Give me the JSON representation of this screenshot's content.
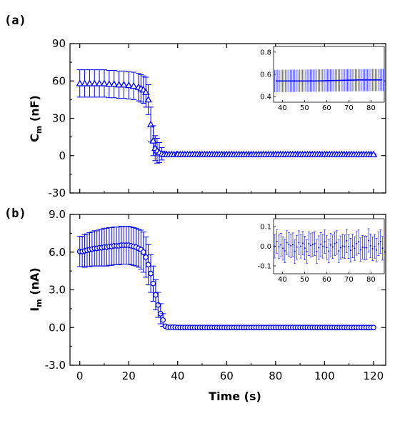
{
  "figure": {
    "panels": [
      "(a)",
      "(b)"
    ]
  },
  "chart_data": [
    {
      "type": "scatter",
      "panel": "(a)",
      "ylabel": "C",
      "ylabel_sub": "m",
      "ylabel_unit": " (nF)",
      "xlabel": "",
      "xlim": [
        -4,
        125
      ],
      "ylim": [
        -30,
        90
      ],
      "xticks": [
        0,
        20,
        40,
        60,
        80,
        100,
        120
      ],
      "yticks": [
        -30,
        0,
        30,
        60,
        90
      ],
      "ytick_labels": [
        "-30",
        "0",
        "30",
        "60",
        "90"
      ],
      "marker": "triangle-up",
      "color": "#0000ff",
      "points": [
        [
          0,
          58,
          11
        ],
        [
          2,
          58,
          11
        ],
        [
          4,
          58,
          11
        ],
        [
          6,
          58,
          11
        ],
        [
          8,
          58,
          11
        ],
        [
          10,
          58,
          11
        ],
        [
          12,
          57.5,
          11
        ],
        [
          14,
          57.5,
          11
        ],
        [
          16,
          57,
          11
        ],
        [
          18,
          57,
          11
        ],
        [
          20,
          56.5,
          11
        ],
        [
          22,
          56,
          11
        ],
        [
          24,
          55,
          11
        ],
        [
          25,
          54,
          11
        ],
        [
          26,
          53,
          11
        ],
        [
          27,
          51,
          12
        ],
        [
          28,
          45,
          12
        ],
        [
          29,
          25,
          14
        ],
        [
          30,
          12,
          12
        ],
        [
          30.8,
          6,
          10
        ],
        [
          31.6,
          4,
          10
        ],
        [
          32.5,
          2.5,
          8
        ],
        [
          33.5,
          1.5,
          5
        ],
        [
          34.5,
          1.2,
          2
        ],
        [
          35.5,
          1,
          1
        ],
        [
          40,
          1,
          0.5
        ],
        [
          50,
          1,
          0.5
        ],
        [
          60,
          1,
          0.5
        ],
        [
          70,
          1,
          0.5
        ],
        [
          80,
          1,
          0.5
        ],
        [
          90,
          1,
          0.5
        ],
        [
          100,
          1,
          0.5
        ],
        [
          110,
          1,
          0.5
        ],
        [
          120,
          1,
          0.5
        ]
      ],
      "inset": {
        "xlim": [
          36,
          86
        ],
        "ylim": [
          0.35,
          0.85
        ],
        "xticks": [
          40,
          50,
          60,
          70,
          80
        ],
        "yticks": [
          0.4,
          0.6,
          0.8
        ],
        "ytick_labels": [
          "0.4",
          "0.6",
          "0.8"
        ],
        "series": [
          [
            37,
            0.54,
            0.1
          ],
          [
            45,
            0.54,
            0.1
          ],
          [
            55,
            0.54,
            0.1
          ],
          [
            65,
            0.545,
            0.1
          ],
          [
            75,
            0.55,
            0.1
          ],
          [
            85,
            0.55,
            0.1
          ]
        ]
      }
    },
    {
      "type": "scatter",
      "panel": "(b)",
      "ylabel": "I",
      "ylabel_sub": "m",
      "ylabel_unit": " (nA)",
      "xlabel": "Time (s)",
      "xlim": [
        -4,
        125
      ],
      "ylim": [
        -3.0,
        9.0
      ],
      "xticks": [
        0,
        20,
        40,
        60,
        80,
        100,
        120
      ],
      "yticks": [
        -3.0,
        0.0,
        3.0,
        6.0,
        9.0
      ],
      "ytick_labels": [
        "-3.0",
        "0.0",
        "3.0",
        "6.0",
        "9.0"
      ],
      "marker": "circle",
      "color": "#0000ff",
      "points": [
        [
          0,
          6.05,
          1.2
        ],
        [
          1,
          6.05,
          1.2
        ],
        [
          2,
          6.1,
          1.3
        ],
        [
          3,
          6.15,
          1.3
        ],
        [
          4,
          6.2,
          1.35
        ],
        [
          5,
          6.25,
          1.35
        ],
        [
          6,
          6.3,
          1.4
        ],
        [
          7,
          6.3,
          1.4
        ],
        [
          8,
          6.35,
          1.45
        ],
        [
          9,
          6.35,
          1.45
        ],
        [
          10,
          6.4,
          1.5
        ],
        [
          11,
          6.4,
          1.5
        ],
        [
          12,
          6.45,
          1.5
        ],
        [
          13,
          6.45,
          1.5
        ],
        [
          14,
          6.5,
          1.5
        ],
        [
          15,
          6.5,
          1.5
        ],
        [
          16,
          6.5,
          1.5
        ],
        [
          17,
          6.55,
          1.5
        ],
        [
          18,
          6.55,
          1.5
        ],
        [
          19,
          6.55,
          1.5
        ],
        [
          20,
          6.55,
          1.5
        ],
        [
          21,
          6.5,
          1.5
        ],
        [
          22,
          6.45,
          1.5
        ],
        [
          23,
          6.4,
          1.5
        ],
        [
          24,
          6.3,
          1.5
        ],
        [
          25,
          6.2,
          1.55
        ],
        [
          26,
          6.0,
          1.6
        ],
        [
          27,
          5.6,
          1.6
        ],
        [
          28,
          5.0,
          1.6
        ],
        [
          29,
          4.3,
          1.5
        ],
        [
          30,
          3.5,
          1.4
        ],
        [
          31,
          2.6,
          1.2
        ],
        [
          32,
          1.8,
          1.0
        ],
        [
          33,
          1.1,
          0.8
        ],
        [
          34,
          0.6,
          0.5
        ],
        [
          35,
          0.1,
          0.2
        ],
        [
          36,
          0.02,
          0.05
        ],
        [
          40,
          0.0,
          0.05
        ],
        [
          50,
          0.0,
          0.05
        ],
        [
          60,
          0.0,
          0.05
        ],
        [
          70,
          0.0,
          0.05
        ],
        [
          80,
          0.0,
          0.05
        ],
        [
          90,
          0.0,
          0.05
        ],
        [
          100,
          0.0,
          0.05
        ],
        [
          110,
          0.0,
          0.05
        ],
        [
          120,
          0.0,
          0.05
        ]
      ],
      "inset": {
        "xlim": [
          36,
          86
        ],
        "ylim": [
          -0.14,
          0.14
        ],
        "xticks": [
          40,
          50,
          60,
          70,
          80
        ],
        "yticks": [
          -0.1,
          0.0,
          0.1
        ],
        "ytick_labels": [
          "-0.1",
          "0.0",
          "0.1"
        ],
        "series": [
          [
            37,
            0.01,
            0.05
          ],
          [
            39,
            -0.02,
            0.05
          ],
          [
            41,
            0.02,
            0.05
          ],
          [
            43,
            -0.01,
            0.05
          ],
          [
            45,
            0.03,
            0.05
          ],
          [
            47,
            0.0,
            0.05
          ],
          [
            49,
            -0.03,
            0.05
          ],
          [
            51,
            0.01,
            0.05
          ],
          [
            53,
            0.02,
            0.05
          ],
          [
            55,
            -0.02,
            0.05
          ],
          [
            57,
            0.03,
            0.05
          ],
          [
            59,
            -0.01,
            0.05
          ],
          [
            61,
            0.0,
            0.05
          ],
          [
            63,
            0.02,
            0.05
          ],
          [
            65,
            -0.02,
            0.05
          ],
          [
            67,
            0.01,
            0.05
          ],
          [
            69,
            0.03,
            0.05
          ],
          [
            71,
            -0.01,
            0.05
          ],
          [
            73,
            0.0,
            0.05
          ],
          [
            75,
            -0.03,
            0.05
          ],
          [
            77,
            0.02,
            0.05
          ],
          [
            79,
            0.01,
            0.05
          ],
          [
            81,
            -0.02,
            0.05
          ],
          [
            83,
            0.02,
            0.05
          ],
          [
            85,
            -0.01,
            0.05
          ]
        ]
      }
    }
  ]
}
